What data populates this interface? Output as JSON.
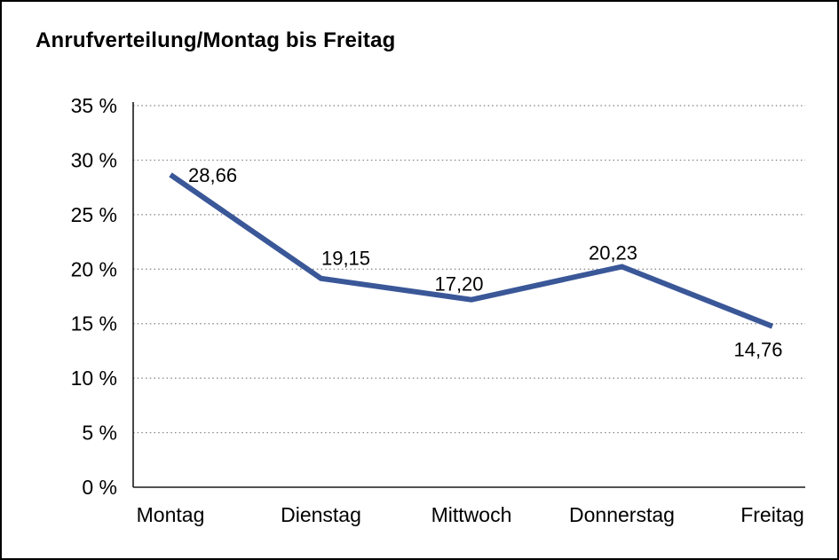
{
  "chart_data": {
    "type": "line",
    "title": "Anrufverteilung/Montag bis Freitag",
    "categories": [
      "Montag",
      "Dienstag",
      "Mittwoch",
      "Donnerstag",
      "Freitag"
    ],
    "values": [
      28.66,
      19.15,
      17.2,
      20.23,
      14.76
    ],
    "value_labels": [
      "28,66",
      "19,15",
      "17,20",
      "20,23",
      "14,76"
    ],
    "ylim": [
      0,
      35
    ],
    "y_tick_step": 5,
    "y_tick_labels": [
      "0 %",
      "5 %",
      "10 %",
      "15 %",
      "20 %",
      "25 %",
      "30 %",
      "35 %"
    ],
    "grid": "horizontal-dotted",
    "legend": "none",
    "xlabel": "",
    "ylabel": "",
    "line_color": "#3A5798",
    "grid_color": "#808080",
    "axis_color": "#1a1a1a",
    "text_color": "#000000",
    "background": "#FFFFFF"
  }
}
